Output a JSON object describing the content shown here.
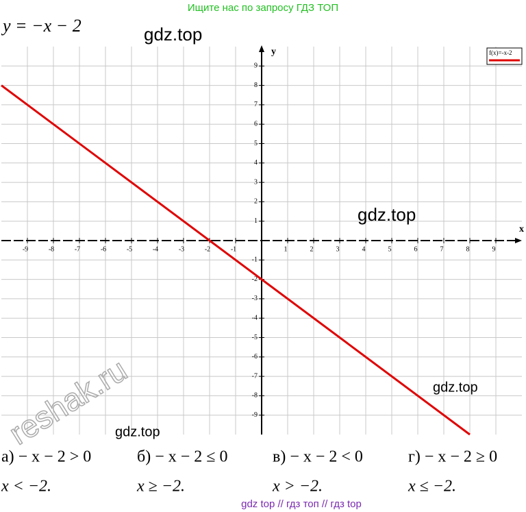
{
  "header": "Ищите нас по запросу ГДЗ ТОП",
  "watermarks": [
    "gdz.top",
    "gdz.top",
    "gdz.top",
    "gdz.top",
    "reshak.ru"
  ],
  "chart_data": {
    "type": "line",
    "title": "y = −x − 2",
    "x_label": "x",
    "y_label": "y",
    "x": [
      -10,
      8
    ],
    "series": [
      {
        "name": "f(x)=-x-2",
        "color": "#e00000",
        "values": [
          8,
          -10
        ]
      }
    ],
    "xlim": [
      -10,
      10
    ],
    "ylim": [
      -10,
      10
    ],
    "xticks": [
      -9,
      -8,
      -7,
      -6,
      -5,
      -4,
      -3,
      -2,
      -1,
      1,
      2,
      3,
      4,
      5,
      6,
      7,
      8,
      9
    ],
    "yticks": [
      -9,
      -8,
      -7,
      -6,
      -5,
      -4,
      -3,
      -2,
      -1,
      1,
      2,
      3,
      4,
      5,
      6,
      7,
      8,
      9
    ],
    "grid": true,
    "legend": "upper right"
  },
  "answers": [
    {
      "inequality": "а) − x − 2 > 0",
      "solution": "x < −2."
    },
    {
      "inequality": "б) − x − 2 ≤ 0",
      "solution": "x ≥ −2."
    },
    {
      "inequality": "в) − x − 2 < 0",
      "solution": "x > −2."
    },
    {
      "inequality": "г) − x − 2 ≥ 0",
      "solution": "x ≤ −2."
    }
  ],
  "footer": "gdz top // гдз топ // гдз top"
}
